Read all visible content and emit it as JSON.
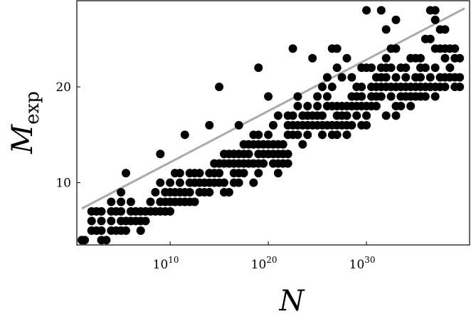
{
  "chart_data": {
    "type": "scatter",
    "title": "",
    "xlabel": "N",
    "ylabel_main": "M",
    "ylabel_sub": "exp",
    "xscale": "log",
    "x_log10_range": [
      0.5,
      40.5
    ],
    "ylim": [
      3.5,
      29
    ],
    "x_ticks": [
      {
        "log10": 10,
        "base": "10",
        "exp": "10"
      },
      {
        "log10": 20,
        "base": "10",
        "exp": "20"
      },
      {
        "log10": 30,
        "base": "10",
        "exp": "30"
      }
    ],
    "y_ticks": [
      {
        "value": 10,
        "label": "10"
      },
      {
        "value": 20,
        "label": "20"
      }
    ],
    "grid": false,
    "fit_line": {
      "color": "#aaaaaa",
      "log10_from": 1,
      "y_from": 7.3,
      "log10_to": 40,
      "y_to": 28.2
    },
    "point_color": "#000000",
    "series": [
      {
        "points_log10_x_y": [
          [
            1,
            4
          ],
          [
            1.3,
            4
          ],
          [
            2,
            5
          ],
          [
            2,
            6
          ],
          [
            2,
            7
          ],
          [
            2.5,
            5
          ],
          [
            2.5,
            7
          ],
          [
            3,
            4
          ],
          [
            3,
            5
          ],
          [
            3,
            6
          ],
          [
            3,
            7
          ],
          [
            3.5,
            4
          ],
          [
            4,
            5
          ],
          [
            4,
            6
          ],
          [
            4,
            7
          ],
          [
            4,
            8
          ],
          [
            4.5,
            5
          ],
          [
            4.5,
            7
          ],
          [
            5,
            5
          ],
          [
            5,
            6
          ],
          [
            5,
            7
          ],
          [
            5,
            8
          ],
          [
            5,
            9
          ],
          [
            5.5,
            5
          ],
          [
            5.5,
            6
          ],
          [
            5.5,
            11
          ],
          [
            6,
            6
          ],
          [
            6,
            7
          ],
          [
            6,
            8
          ],
          [
            6.5,
            6
          ],
          [
            6.5,
            7
          ],
          [
            7,
            5
          ],
          [
            7,
            6
          ],
          [
            7,
            7
          ],
          [
            7.5,
            6
          ],
          [
            7.5,
            7
          ],
          [
            8,
            7
          ],
          [
            8,
            8
          ],
          [
            8.5,
            7
          ],
          [
            8.5,
            9
          ],
          [
            9,
            7
          ],
          [
            9,
            8
          ],
          [
            9,
            10
          ],
          [
            9,
            13
          ],
          [
            9.5,
            7
          ],
          [
            9.5,
            8
          ],
          [
            9.5,
            9
          ],
          [
            10,
            7
          ],
          [
            10,
            8
          ],
          [
            10,
            9
          ],
          [
            10,
            10
          ],
          [
            10.5,
            8
          ],
          [
            10.5,
            9
          ],
          [
            10.5,
            11
          ],
          [
            11,
            8
          ],
          [
            11,
            9
          ],
          [
            11,
            10
          ],
          [
            11,
            11
          ],
          [
            11.5,
            8
          ],
          [
            11.5,
            9
          ],
          [
            11.5,
            15
          ],
          [
            12,
            8
          ],
          [
            12,
            9
          ],
          [
            12,
            10
          ],
          [
            12,
            11
          ],
          [
            12.5,
            8
          ],
          [
            12.5,
            10
          ],
          [
            12.5,
            11
          ],
          [
            13,
            9
          ],
          [
            13,
            10
          ],
          [
            13,
            11
          ],
          [
            13.5,
            9
          ],
          [
            13.5,
            10
          ],
          [
            14,
            9
          ],
          [
            14,
            10
          ],
          [
            14,
            11
          ],
          [
            14,
            16
          ],
          [
            14.5,
            10
          ],
          [
            14.5,
            11
          ],
          [
            14.5,
            12
          ],
          [
            15,
            10
          ],
          [
            15,
            11
          ],
          [
            15,
            12
          ],
          [
            15,
            20
          ],
          [
            15.5,
            9
          ],
          [
            15.5,
            10
          ],
          [
            15.5,
            12
          ],
          [
            15.5,
            13
          ],
          [
            16,
            9
          ],
          [
            16,
            12
          ],
          [
            16,
            13
          ],
          [
            16.5,
            10
          ],
          [
            16.5,
            11
          ],
          [
            16.5,
            12
          ],
          [
            16.5,
            13
          ],
          [
            17,
            10
          ],
          [
            17,
            11
          ],
          [
            17,
            12
          ],
          [
            17,
            13
          ],
          [
            17,
            16
          ],
          [
            17.5,
            11
          ],
          [
            17.5,
            12
          ],
          [
            17.5,
            13
          ],
          [
            17.5,
            14
          ],
          [
            18,
            12
          ],
          [
            18,
            13
          ],
          [
            18,
            14
          ],
          [
            18.5,
            10
          ],
          [
            18.5,
            12
          ],
          [
            18.5,
            14
          ],
          [
            18.5,
            15
          ],
          [
            19,
            11
          ],
          [
            19,
            12
          ],
          [
            19,
            13
          ],
          [
            19,
            14
          ],
          [
            19,
            15
          ],
          [
            19,
            22
          ],
          [
            19.5,
            12
          ],
          [
            19.5,
            13
          ],
          [
            19.5,
            14
          ],
          [
            20,
            13
          ],
          [
            20,
            14
          ],
          [
            20,
            15
          ],
          [
            20,
            19
          ],
          [
            20.5,
            12
          ],
          [
            20.5,
            13
          ],
          [
            20.5,
            14
          ],
          [
            20.5,
            16
          ],
          [
            21,
            11
          ],
          [
            21,
            12
          ],
          [
            21,
            13
          ],
          [
            21,
            14
          ],
          [
            21,
            17
          ],
          [
            21.5,
            12
          ],
          [
            21.5,
            13
          ],
          [
            21.5,
            14
          ],
          [
            22,
            12
          ],
          [
            22,
            13
          ],
          [
            22,
            15
          ],
          [
            22,
            16
          ],
          [
            22,
            17
          ],
          [
            22.5,
            15
          ],
          [
            22.5,
            16
          ],
          [
            22.5,
            17
          ],
          [
            22.5,
            24
          ],
          [
            23,
            15
          ],
          [
            23,
            16
          ],
          [
            23,
            18
          ],
          [
            23,
            19
          ],
          [
            23.5,
            14
          ],
          [
            23.5,
            16
          ],
          [
            23.5,
            17
          ],
          [
            24,
            15
          ],
          [
            24,
            16
          ],
          [
            24,
            17
          ],
          [
            24,
            18
          ],
          [
            24.5,
            16
          ],
          [
            24.5,
            17
          ],
          [
            24.5,
            23
          ],
          [
            25,
            16
          ],
          [
            25,
            17
          ],
          [
            25,
            18
          ],
          [
            25,
            19
          ],
          [
            25.5,
            15
          ],
          [
            25.5,
            16
          ],
          [
            25.5,
            17
          ],
          [
            25.5,
            20
          ],
          [
            26,
            16
          ],
          [
            26,
            18
          ],
          [
            26,
            19
          ],
          [
            26,
            21
          ],
          [
            26.5,
            15
          ],
          [
            26.5,
            16
          ],
          [
            26.5,
            18
          ],
          [
            26.5,
            20
          ],
          [
            26.5,
            24
          ],
          [
            27,
            15
          ],
          [
            27,
            16
          ],
          [
            27,
            17
          ],
          [
            27,
            18
          ],
          [
            27,
            22
          ],
          [
            27,
            24
          ],
          [
            27.5,
            16
          ],
          [
            27.5,
            17
          ],
          [
            27.5,
            18
          ],
          [
            27.5,
            21
          ],
          [
            28,
            15
          ],
          [
            28,
            16
          ],
          [
            28,
            17
          ],
          [
            28,
            18
          ],
          [
            28,
            23
          ],
          [
            28.5,
            16
          ],
          [
            28.5,
            18
          ],
          [
            28.5,
            19
          ],
          [
            28.5,
            21
          ],
          [
            29,
            17
          ],
          [
            29,
            18
          ],
          [
            29,
            19
          ],
          [
            29,
            20
          ],
          [
            29.5,
            16
          ],
          [
            29.5,
            18
          ],
          [
            29.5,
            19
          ],
          [
            29.5,
            20
          ],
          [
            29.5,
            22
          ],
          [
            30,
            16
          ],
          [
            30,
            17
          ],
          [
            30,
            18
          ],
          [
            30,
            22
          ],
          [
            30,
            28
          ],
          [
            30.5,
            18
          ],
          [
            30.5,
            19
          ],
          [
            30.5,
            20
          ],
          [
            30.5,
            22
          ],
          [
            31,
            18
          ],
          [
            31,
            19
          ],
          [
            31,
            20
          ],
          [
            31,
            21
          ],
          [
            31.5,
            19
          ],
          [
            31.5,
            20
          ],
          [
            31.5,
            21
          ],
          [
            31.5,
            22
          ],
          [
            31.5,
            28
          ],
          [
            32,
            17
          ],
          [
            32,
            20
          ],
          [
            32,
            21
          ],
          [
            32,
            22
          ],
          [
            32,
            23
          ],
          [
            32,
            26
          ],
          [
            32.5,
            19
          ],
          [
            32.5,
            20
          ],
          [
            32.5,
            22
          ],
          [
            32.5,
            24
          ],
          [
            33,
            17
          ],
          [
            33,
            18
          ],
          [
            33,
            20
          ],
          [
            33,
            21
          ],
          [
            33,
            24
          ],
          [
            33,
            27
          ],
          [
            33.5,
            18
          ],
          [
            33.5,
            19
          ],
          [
            33.5,
            20
          ],
          [
            33.5,
            22
          ],
          [
            34,
            19
          ],
          [
            34,
            20
          ],
          [
            34,
            21
          ],
          [
            34,
            22
          ],
          [
            34.5,
            18
          ],
          [
            34.5,
            19
          ],
          [
            34.5,
            20
          ],
          [
            34.5,
            23
          ],
          [
            35,
            19
          ],
          [
            35,
            20
          ],
          [
            35,
            21
          ],
          [
            35,
            23
          ],
          [
            35.5,
            19
          ],
          [
            35.5,
            20
          ],
          [
            35.5,
            21
          ],
          [
            35.5,
            22
          ],
          [
            35.5,
            23
          ],
          [
            36,
            19
          ],
          [
            36,
            20
          ],
          [
            36,
            22
          ],
          [
            36,
            25
          ],
          [
            36.5,
            20
          ],
          [
            36.5,
            21
          ],
          [
            36.5,
            25
          ],
          [
            36.5,
            28
          ],
          [
            37,
            19
          ],
          [
            37,
            20
          ],
          [
            37,
            22
          ],
          [
            37,
            24
          ],
          [
            37,
            27
          ],
          [
            37,
            28
          ],
          [
            37.5,
            20
          ],
          [
            37.5,
            21
          ],
          [
            37.5,
            24
          ],
          [
            37.5,
            26
          ],
          [
            38,
            20
          ],
          [
            38,
            21
          ],
          [
            38,
            23
          ],
          [
            38,
            24
          ],
          [
            38,
            26
          ],
          [
            38.5,
            21
          ],
          [
            38.5,
            22
          ],
          [
            38.5,
            24
          ],
          [
            39,
            20
          ],
          [
            39,
            21
          ],
          [
            39,
            23
          ],
          [
            39,
            24
          ],
          [
            39.5,
            20
          ],
          [
            39.5,
            21
          ],
          [
            39.5,
            23
          ]
        ]
      }
    ]
  }
}
